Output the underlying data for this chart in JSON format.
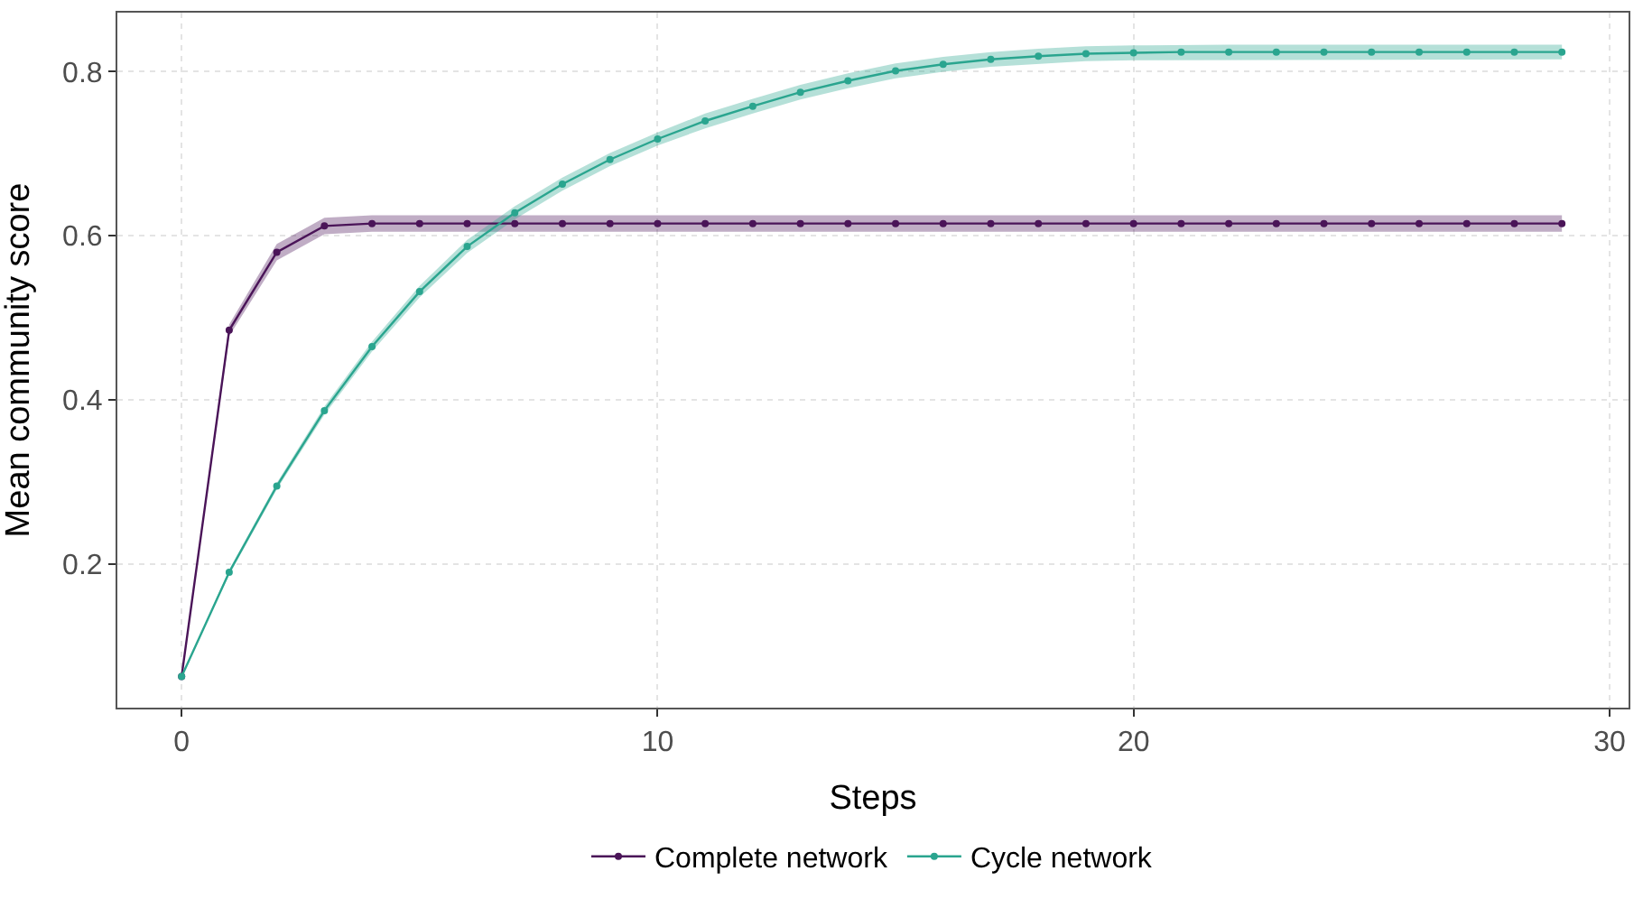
{
  "chart_data": {
    "type": "line",
    "xlabel": "Steps",
    "ylabel": "Mean community score",
    "x": [
      0,
      1,
      2,
      3,
      4,
      5,
      6,
      7,
      8,
      9,
      10,
      11,
      12,
      13,
      14,
      15,
      16,
      17,
      18,
      19,
      20,
      21,
      22,
      23,
      24,
      25,
      26,
      27,
      28,
      29
    ],
    "series": [
      {
        "name": "Complete network",
        "color": "#4a1458",
        "values": [
          0.063,
          0.485,
          0.58,
          0.612,
          0.615,
          0.615,
          0.615,
          0.615,
          0.615,
          0.615,
          0.615,
          0.615,
          0.615,
          0.615,
          0.615,
          0.615,
          0.615,
          0.615,
          0.615,
          0.615,
          0.615,
          0.615,
          0.615,
          0.615,
          0.615,
          0.615,
          0.615,
          0.615,
          0.615,
          0.615
        ],
        "lower": [
          0.062,
          0.478,
          0.57,
          0.602,
          0.605,
          0.605,
          0.605,
          0.605,
          0.605,
          0.605,
          0.605,
          0.605,
          0.605,
          0.605,
          0.605,
          0.605,
          0.605,
          0.605,
          0.605,
          0.605,
          0.605,
          0.605,
          0.605,
          0.605,
          0.605,
          0.605,
          0.605,
          0.605,
          0.605,
          0.605
        ],
        "upper": [
          0.064,
          0.492,
          0.59,
          0.622,
          0.625,
          0.625,
          0.625,
          0.625,
          0.625,
          0.625,
          0.625,
          0.625,
          0.625,
          0.625,
          0.625,
          0.625,
          0.625,
          0.625,
          0.625,
          0.625,
          0.625,
          0.625,
          0.625,
          0.625,
          0.625,
          0.625,
          0.625,
          0.625,
          0.625,
          0.625
        ]
      },
      {
        "name": "Cycle network",
        "color": "#2aa58f",
        "values": [
          0.063,
          0.19,
          0.295,
          0.387,
          0.465,
          0.532,
          0.587,
          0.628,
          0.663,
          0.693,
          0.718,
          0.74,
          0.758,
          0.775,
          0.789,
          0.801,
          0.809,
          0.815,
          0.819,
          0.822,
          0.823,
          0.824,
          0.824,
          0.824,
          0.824,
          0.824,
          0.824,
          0.824,
          0.824,
          0.824
        ],
        "lower": [
          0.062,
          0.187,
          0.291,
          0.382,
          0.459,
          0.525,
          0.579,
          0.62,
          0.655,
          0.685,
          0.71,
          0.731,
          0.749,
          0.766,
          0.78,
          0.792,
          0.8,
          0.806,
          0.81,
          0.813,
          0.814,
          0.815,
          0.815,
          0.815,
          0.815,
          0.815,
          0.815,
          0.815,
          0.815,
          0.815
        ],
        "upper": [
          0.064,
          0.193,
          0.299,
          0.392,
          0.471,
          0.539,
          0.595,
          0.636,
          0.671,
          0.701,
          0.726,
          0.749,
          0.767,
          0.784,
          0.798,
          0.81,
          0.818,
          0.824,
          0.828,
          0.831,
          0.832,
          0.833,
          0.833,
          0.833,
          0.833,
          0.833,
          0.833,
          0.833,
          0.833,
          0.833
        ]
      }
    ],
    "xlim": [
      -1.35,
      30.4
    ],
    "xticks": [
      0,
      10,
      20,
      30
    ],
    "ylim": [
      0.025,
      0.872
    ],
    "yticks": [
      0.2,
      0.4,
      0.6,
      0.8
    ],
    "grid": true,
    "legend": "bottom",
    "marker": "circle",
    "line_style": "solid"
  }
}
